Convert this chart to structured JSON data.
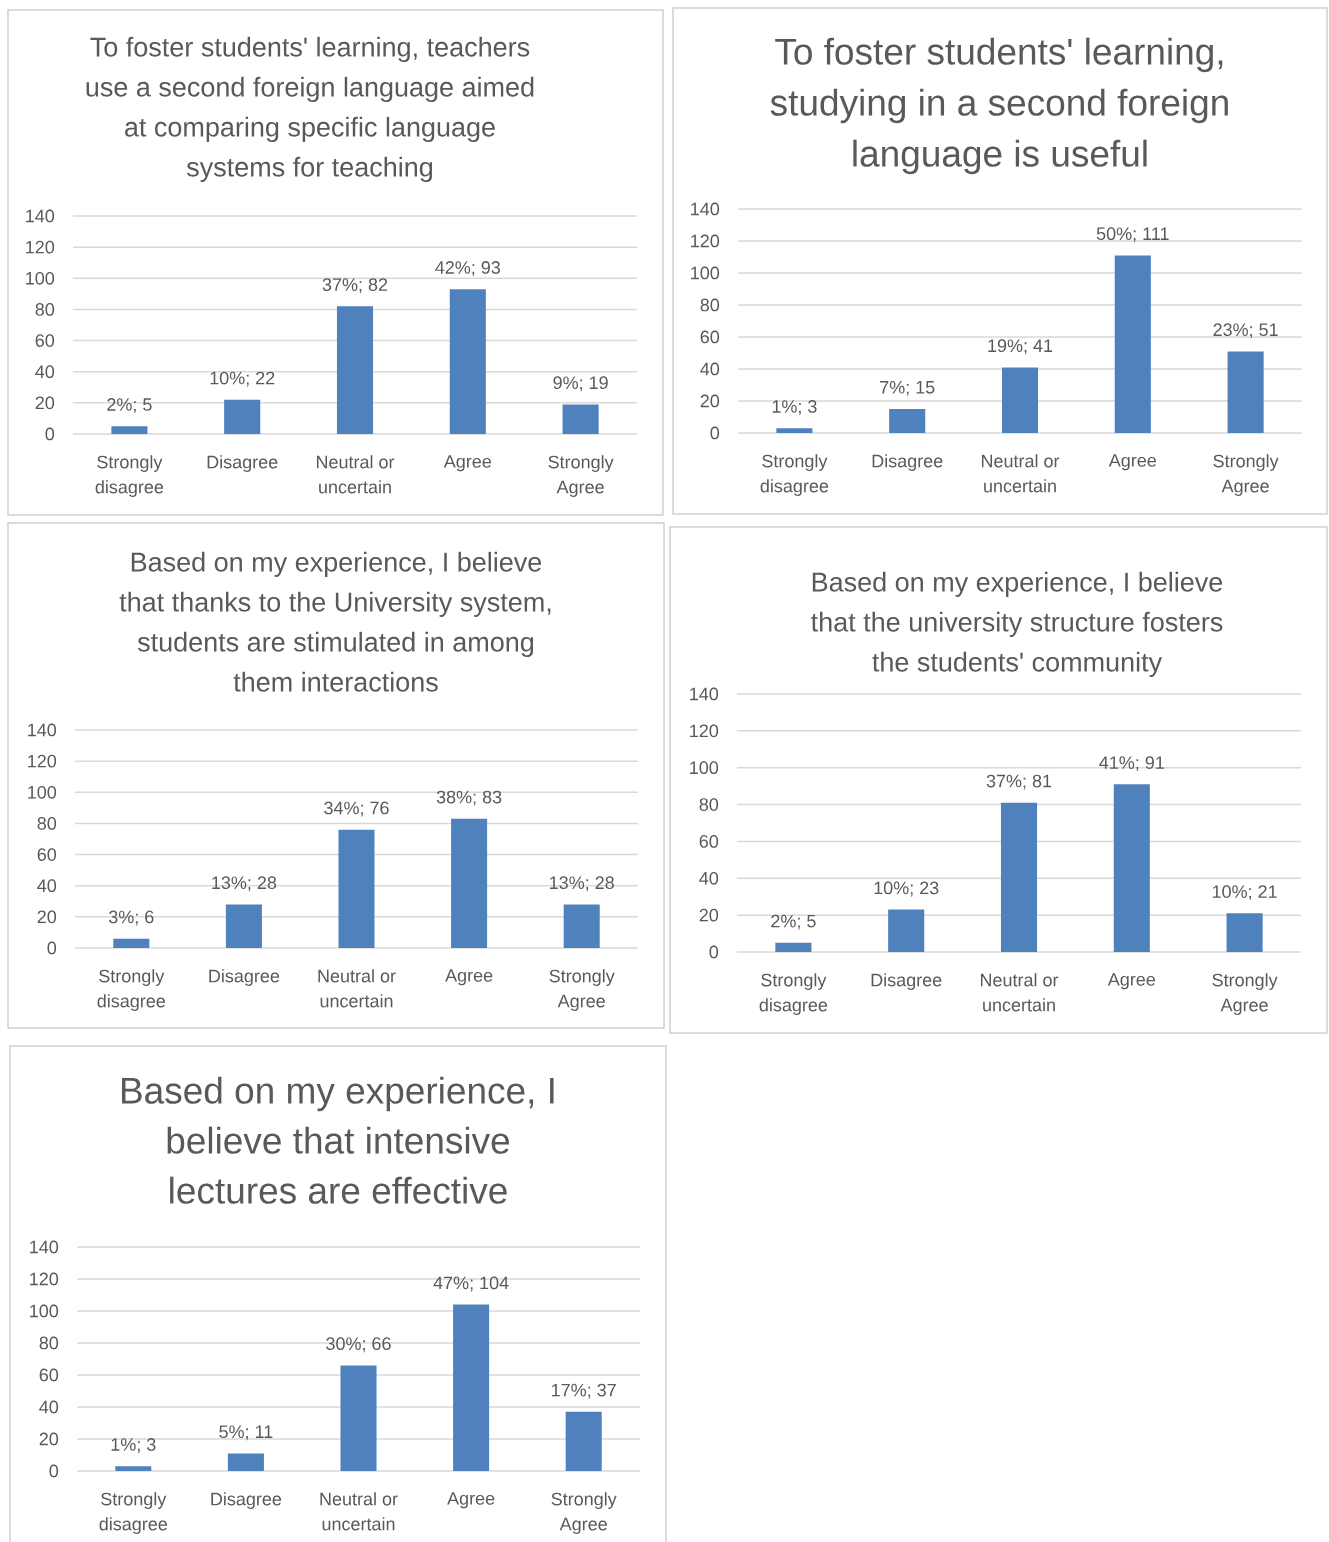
{
  "chart_data": [
    {
      "type": "bar",
      "title": "To foster students' learning, teachers use a second foreign language aimed at comparing specific language systems for teaching",
      "categories": [
        "Strongly disagree",
        "Disagree",
        "Neutral or uncertain",
        "Agree",
        "Strongly Agree"
      ],
      "values": [
        5,
        22,
        82,
        93,
        19
      ],
      "value_labels": [
        "2%; 5",
        "10%; 22",
        "37%; 82",
        "42%; 93",
        "9%; 19"
      ],
      "color": "#4f81bd",
      "ylim": [
        0,
        140
      ],
      "yticks": [
        0,
        20,
        40,
        60,
        80,
        100,
        120,
        140
      ],
      "grid": "y"
    },
    {
      "type": "bar",
      "title": "To foster students' learning, studying in a second foreign language is useful",
      "categories": [
        "Strongly disagree",
        "Disagree",
        "Neutral or uncertain",
        "Agree",
        "Strongly Agree"
      ],
      "values": [
        3,
        15,
        41,
        111,
        51
      ],
      "value_labels": [
        "1%; 3",
        "7%; 15",
        "19%; 41",
        "50%; 111",
        "23%; 51"
      ],
      "color": "#4f81bd",
      "ylim": [
        0,
        140
      ],
      "yticks": [
        0,
        20,
        40,
        60,
        80,
        100,
        120,
        140
      ],
      "grid": "y"
    },
    {
      "type": "bar",
      "title": "Based on my experience, I believe that thanks to the University system, students are stimulated in among them interactions",
      "categories": [
        "Strongly disagree",
        "Disagree",
        "Neutral or uncertain",
        "Agree",
        "Strongly Agree"
      ],
      "values": [
        6,
        28,
        76,
        83,
        28
      ],
      "value_labels": [
        "3%; 6",
        "13%; 28",
        "34%; 76",
        "38%; 83",
        "13%; 28"
      ],
      "color": "#4f81bd",
      "ylim": [
        0,
        140
      ],
      "yticks": [
        0,
        20,
        40,
        60,
        80,
        100,
        120,
        140
      ],
      "grid": "y"
    },
    {
      "type": "bar",
      "title": "Based on my experience, I believe that the university structure fosters the students' community",
      "categories": [
        "Strongly disagree",
        "Disagree",
        "Neutral or uncertain",
        "Agree",
        "Strongly Agree"
      ],
      "values": [
        5,
        23,
        81,
        91,
        21
      ],
      "value_labels": [
        "2%; 5",
        "10%; 23",
        "37%; 81",
        "41%; 91",
        "10%; 21"
      ],
      "color": "#4f81bd",
      "ylim": [
        0,
        140
      ],
      "yticks": [
        0,
        20,
        40,
        60,
        80,
        100,
        120,
        140
      ],
      "grid": "y"
    },
    {
      "type": "bar",
      "title": "Based on my experience, I believe that intensive lectures are effective",
      "categories": [
        "Strongly disagree",
        "Disagree",
        "Neutral or uncertain",
        "Agree",
        "Strongly Agree"
      ],
      "values": [
        3,
        11,
        66,
        104,
        37
      ],
      "value_labels": [
        "1%; 3",
        "5%; 11",
        "30%; 66",
        "47%; 104",
        "17%; 37"
      ],
      "color": "#4f81bd",
      "ylim": [
        0,
        140
      ],
      "yticks": [
        0,
        20,
        40,
        60,
        80,
        100,
        120,
        140
      ],
      "grid": "y"
    }
  ]
}
